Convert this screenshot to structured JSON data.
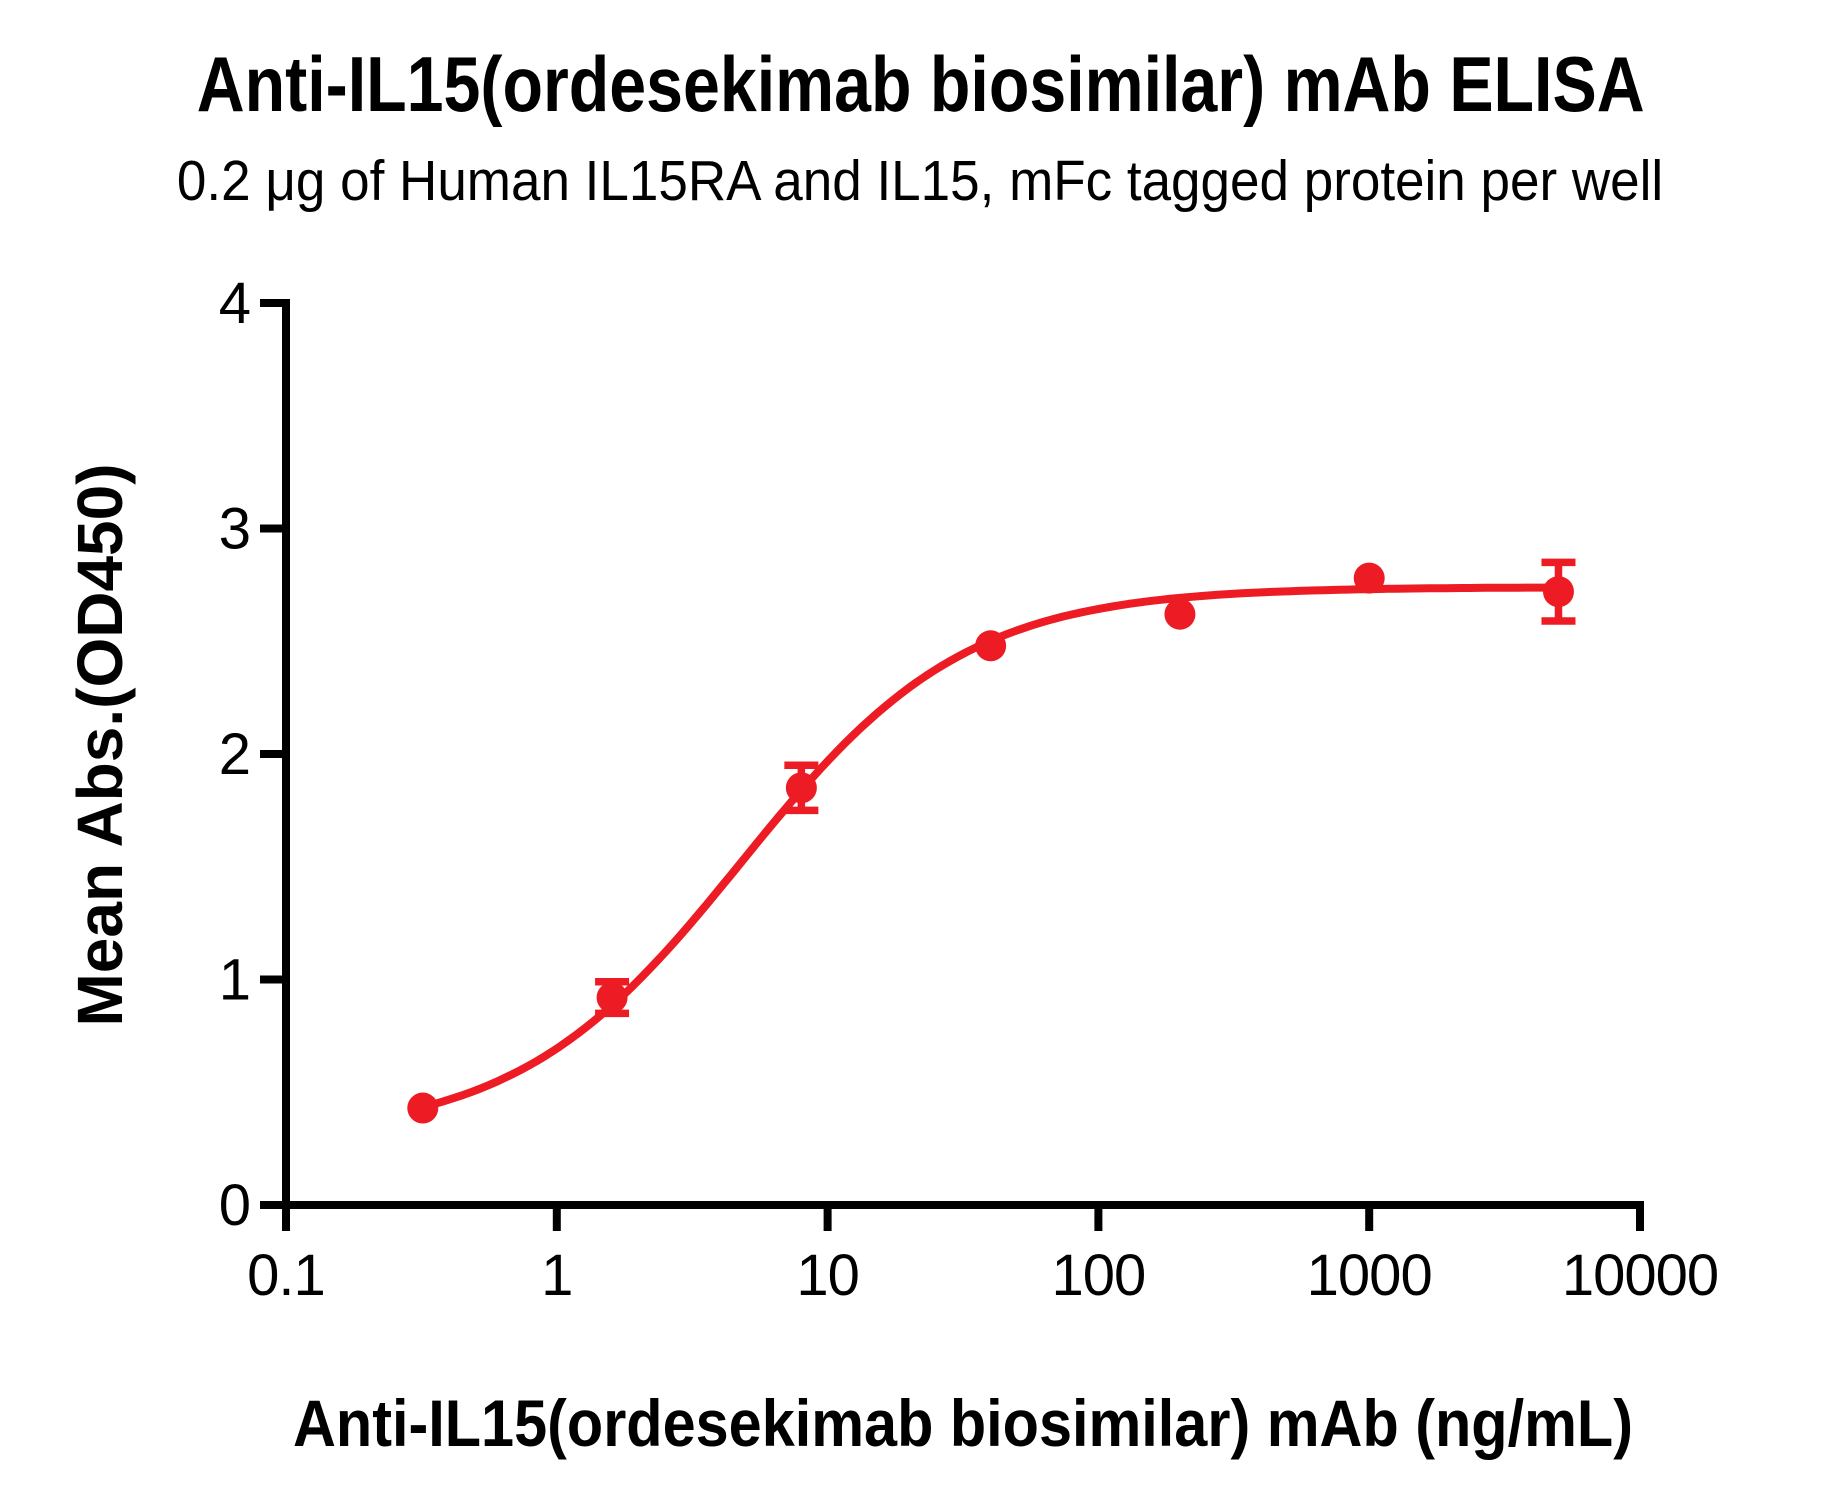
{
  "chart_data": {
    "type": "scatter",
    "title": "Anti-IL15(ordesekimab biosimilar) mAb ELISA",
    "subtitle": "0.2 μg of Human IL15RA and IL15, mFc tagged protein per well",
    "xlabel": "Anti-IL15(ordesekimab biosimilar) mAb (ng/mL)",
    "ylabel": "Mean Abs.(OD450)",
    "x_scale": "log10",
    "xlim": [
      0.1,
      10000
    ],
    "ylim": [
      0,
      4
    ],
    "x_ticks": [
      0.1,
      1,
      10,
      100,
      1000,
      10000
    ],
    "x_tick_labels": [
      "0.1",
      "1",
      "10",
      "100",
      "1000",
      "10000"
    ],
    "y_ticks": [
      0,
      1,
      2,
      3,
      4
    ],
    "y_tick_labels": [
      "0",
      "1",
      "2",
      "3",
      "4"
    ],
    "grid": false,
    "legend": false,
    "axis_color": "#000000",
    "series": [
      {
        "name": "Anti-IL15(ordesekimab biosimilar) mAb",
        "color": "#ED1C24",
        "x": [
          0.32,
          1.6,
          8,
          40,
          200,
          1000,
          5000
        ],
        "y": [
          0.43,
          0.92,
          1.85,
          2.48,
          2.62,
          2.78,
          2.72
        ],
        "y_err": [
          0,
          0.07,
          0.1,
          0,
          0,
          0,
          0.13
        ],
        "fit": {
          "model": "4PL",
          "bottom": 0.3,
          "top": 2.74,
          "ec50": 4.8,
          "hill": 1.05,
          "x_range": [
            0.32,
            5000
          ]
        }
      }
    ]
  }
}
